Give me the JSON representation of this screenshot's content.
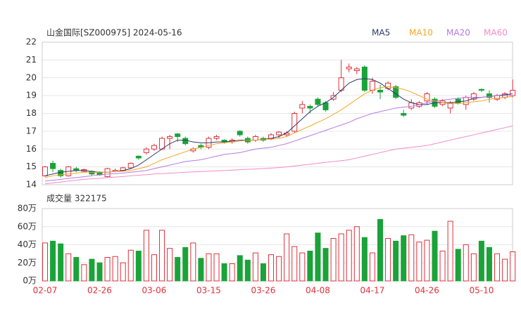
{
  "chart_data": [
    {
      "type": "candlestick",
      "title": "山金国际[SZ000975] 2024-05-16",
      "up_color": "#e0303a",
      "down_color": "#1aa339",
      "open": [
        14.5,
        15.2,
        14.8,
        14.5,
        14.9,
        14.75,
        14.75,
        14.7,
        14.45,
        14.75,
        14.8,
        14.95,
        15.6,
        15.8,
        16.0,
        16.0,
        16.6,
        16.85,
        16.6,
        15.9,
        16.2,
        16.1,
        16.6,
        16.5,
        16.4,
        17.0,
        16.6,
        16.5,
        16.6,
        16.6,
        16.8,
        16.8,
        17.0,
        18.3,
        18.4,
        18.8,
        18.6,
        18.8,
        19.3,
        20.5,
        20.4,
        20.6,
        19.3,
        19.3,
        19.4,
        19.5,
        18.0,
        18.3,
        18.4,
        18.7,
        18.8,
        18.5,
        18.3,
        18.8,
        18.5,
        18.8,
        19.35,
        19.1,
        18.8,
        18.9,
        19.0
      ],
      "high": [
        15.05,
        15.35,
        14.9,
        15.05,
        15.0,
        14.9,
        14.8,
        14.75,
        14.95,
        14.9,
        15.0,
        15.25,
        15.65,
        16.1,
        16.3,
        16.7,
        16.8,
        16.9,
        16.7,
        16.1,
        16.3,
        16.7,
        16.8,
        16.55,
        16.6,
        17.05,
        16.7,
        16.8,
        16.7,
        16.9,
        17.0,
        17.0,
        18.1,
        18.7,
        18.5,
        18.9,
        18.7,
        19.2,
        21.0,
        20.8,
        20.6,
        20.7,
        20.0,
        19.6,
        19.8,
        19.6,
        18.2,
        18.8,
        18.7,
        19.2,
        18.9,
        18.8,
        18.7,
        18.9,
        19.0,
        19.2,
        19.4,
        19.3,
        19.1,
        19.2,
        19.9
      ],
      "low": [
        14.45,
        14.7,
        14.4,
        14.45,
        14.7,
        14.7,
        14.5,
        14.5,
        14.4,
        14.7,
        14.75,
        14.9,
        15.4,
        15.7,
        15.9,
        15.95,
        16.0,
        16.4,
        16.2,
        15.8,
        16.0,
        16.0,
        16.5,
        16.3,
        16.3,
        16.7,
        16.3,
        16.4,
        16.4,
        16.5,
        16.6,
        16.7,
        16.9,
        18.0,
        18.0,
        18.4,
        18.1,
        18.7,
        19.2,
        20.3,
        20.2,
        19.2,
        19.1,
        18.8,
        19.3,
        18.8,
        17.8,
        18.2,
        18.3,
        18.5,
        18.3,
        18.4,
        18.0,
        18.5,
        18.2,
        18.7,
        19.2,
        18.6,
        18.7,
        18.8,
        18.9
      ],
      "close": [
        15.0,
        14.9,
        14.5,
        15.0,
        14.8,
        14.85,
        14.6,
        14.55,
        14.9,
        14.8,
        14.95,
        15.2,
        15.5,
        16.0,
        16.2,
        16.6,
        16.7,
        16.7,
        16.3,
        16.0,
        16.1,
        16.6,
        16.7,
        16.4,
        16.5,
        16.8,
        16.4,
        16.7,
        16.5,
        16.8,
        16.95,
        16.9,
        18.0,
        18.5,
        18.3,
        18.5,
        18.2,
        19.0,
        20.0,
        20.6,
        20.5,
        19.3,
        19.8,
        19.2,
        19.7,
        18.9,
        17.9,
        18.6,
        18.6,
        19.1,
        18.4,
        18.7,
        18.6,
        18.6,
        18.9,
        19.1,
        19.3,
        18.9,
        19.0,
        19.1,
        19.3
      ],
      "series": [
        {
          "name": "MA5",
          "color": "#2b3a67",
          "values": [
            14.5,
            14.6,
            14.7,
            14.75,
            14.8,
            14.8,
            14.75,
            14.7,
            14.7,
            14.75,
            14.8,
            14.9,
            15.1,
            15.4,
            15.7,
            16.0,
            16.3,
            16.5,
            16.5,
            16.4,
            16.35,
            16.35,
            16.4,
            16.4,
            16.45,
            16.5,
            16.5,
            16.5,
            16.55,
            16.6,
            16.7,
            16.9,
            17.3,
            17.7,
            18.1,
            18.4,
            18.6,
            18.9,
            19.3,
            19.7,
            19.9,
            19.95,
            19.9,
            19.7,
            19.4,
            19.1,
            18.8,
            18.6,
            18.5,
            18.5,
            18.6,
            18.6,
            18.6,
            18.65,
            18.7,
            18.85,
            18.9,
            18.95,
            19.0,
            19.05,
            19.1
          ]
        },
        {
          "name": "MA10",
          "color": "#f5a623",
          "values": [
            14.4,
            14.5,
            14.55,
            14.6,
            14.65,
            14.7,
            14.7,
            14.7,
            14.7,
            14.75,
            14.75,
            14.8,
            14.9,
            15.0,
            15.2,
            15.4,
            15.55,
            15.7,
            15.85,
            16.0,
            16.1,
            16.2,
            16.3,
            16.35,
            16.4,
            16.45,
            16.5,
            16.5,
            16.55,
            16.55,
            16.6,
            16.7,
            16.9,
            17.1,
            17.3,
            17.5,
            17.7,
            17.95,
            18.2,
            18.5,
            18.8,
            19.1,
            19.3,
            19.45,
            19.5,
            19.45,
            19.35,
            19.2,
            19.0,
            18.8,
            18.7,
            18.6,
            18.55,
            18.55,
            18.6,
            18.65,
            18.7,
            18.8,
            18.85,
            18.9,
            18.95
          ]
        },
        {
          "name": "MA20",
          "color": "#b57be0",
          "values": [
            14.2,
            14.25,
            14.3,
            14.35,
            14.4,
            14.45,
            14.5,
            14.55,
            14.6,
            14.62,
            14.65,
            14.7,
            14.75,
            14.8,
            14.9,
            15.0,
            15.1,
            15.2,
            15.3,
            15.35,
            15.4,
            15.5,
            15.6,
            15.7,
            15.75,
            15.8,
            15.9,
            16.0,
            16.05,
            16.1,
            16.2,
            16.3,
            16.45,
            16.6,
            16.75,
            16.9,
            17.05,
            17.2,
            17.35,
            17.5,
            17.7,
            17.85,
            18.0,
            18.1,
            18.2,
            18.3,
            18.35,
            18.4,
            18.5,
            18.6,
            18.7,
            18.75,
            18.8,
            18.85,
            18.9,
            18.9,
            18.9,
            18.95,
            19.0,
            19.0,
            19.0
          ]
        },
        {
          "name": "MA60",
          "color": "#f28cc8",
          "values": [
            14.05,
            14.1,
            14.15,
            14.2,
            14.25,
            14.3,
            14.33,
            14.36,
            14.4,
            14.43,
            14.46,
            14.5,
            14.53,
            14.56,
            14.6,
            14.62,
            14.65,
            14.67,
            14.7,
            14.72,
            14.74,
            14.76,
            14.78,
            14.8,
            14.82,
            14.84,
            14.86,
            14.88,
            14.9,
            14.93,
            14.96,
            15.0,
            15.05,
            15.1,
            15.15,
            15.2,
            15.25,
            15.3,
            15.35,
            15.4,
            15.5,
            15.6,
            15.7,
            15.8,
            15.9,
            16.0,
            16.05,
            16.1,
            16.15,
            16.2,
            16.3,
            16.4,
            16.5,
            16.6,
            16.7,
            16.8,
            16.9,
            17.0,
            17.1,
            17.2,
            17.3
          ]
        }
      ],
      "ylim": [
        14,
        22
      ],
      "yticks": [
        14,
        15,
        16,
        17,
        18,
        19,
        20,
        21,
        22
      ],
      "grid": true
    },
    {
      "type": "bar",
      "title": "成交量 322175",
      "categories": [
        "02-07",
        null,
        null,
        null,
        null,
        null,
        null,
        "02-26",
        null,
        null,
        null,
        null,
        null,
        null,
        "03-06",
        null,
        null,
        null,
        null,
        null,
        null,
        "03-15",
        null,
        null,
        null,
        null,
        null,
        null,
        "03-26",
        null,
        null,
        null,
        null,
        null,
        null,
        "04-08",
        null,
        null,
        null,
        null,
        null,
        null,
        "04-17",
        null,
        null,
        null,
        null,
        null,
        null,
        "04-26",
        null,
        null,
        null,
        null,
        null,
        null,
        "05-10",
        null,
        null,
        null,
        null
      ],
      "values": [
        42,
        44,
        41,
        30,
        26,
        18,
        24,
        20,
        26,
        27,
        20,
        34,
        33,
        56,
        29,
        56,
        36,
        26,
        37,
        42,
        25,
        30,
        30,
        19,
        19,
        28,
        23,
        31,
        19,
        29,
        27,
        52,
        38,
        31,
        33,
        53,
        36,
        47,
        52,
        56,
        60,
        48,
        31,
        68,
        47,
        44,
        50,
        51,
        43,
        45,
        55,
        33,
        66,
        35,
        40,
        30,
        44,
        37,
        30,
        24,
        32.2175
      ],
      "ylim": [
        0,
        80
      ],
      "yticks": [
        {
          "value": 0,
          "label": "0万"
        },
        {
          "value": 20,
          "label": "20万"
        },
        {
          "value": 40,
          "label": "40万"
        },
        {
          "value": 60,
          "label": "60万"
        },
        {
          "value": 80,
          "label": "80万"
        }
      ],
      "grid": true
    }
  ]
}
